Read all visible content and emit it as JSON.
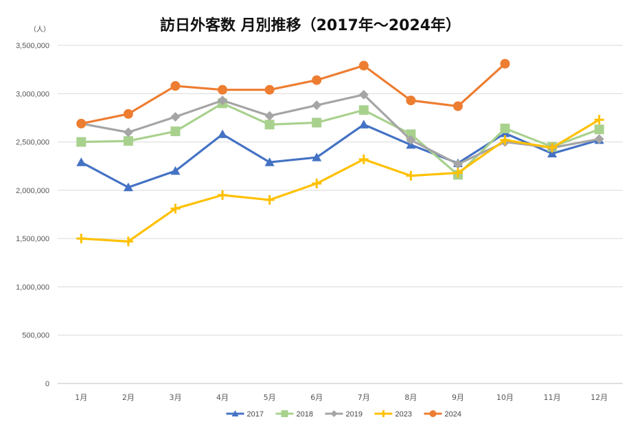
{
  "chart_data": {
    "type": "line",
    "title": "訪日外客数 月別推移（2017年～2024年）",
    "unit_label": "（人）",
    "xlabel": "",
    "ylabel": "人",
    "ylim": [
      0,
      3500000
    ],
    "yticks": [
      0,
      500000,
      1000000,
      1500000,
      2000000,
      2500000,
      3000000,
      3500000
    ],
    "ytick_labels": [
      "0",
      "500,000",
      "1,000,000",
      "1,500,000",
      "2,000,000",
      "2,500,000",
      "3,000,000",
      "3,500,000"
    ],
    "categories": [
      "1月",
      "2月",
      "3月",
      "4月",
      "5月",
      "6月",
      "7月",
      "8月",
      "9月",
      "10月",
      "11月",
      "12月"
    ],
    "grid": "horizontal",
    "legend_position": "bottom",
    "series": [
      {
        "name": "2017",
        "color": "#4472c4",
        "marker": "triangle",
        "values": [
          2290000,
          2030000,
          2200000,
          2580000,
          2290000,
          2340000,
          2680000,
          2470000,
          2280000,
          2590000,
          2380000,
          2520000
        ]
      },
      {
        "name": "2018",
        "color": "#a9d18e",
        "marker": "square",
        "values": [
          2500000,
          2510000,
          2610000,
          2900000,
          2680000,
          2700000,
          2830000,
          2580000,
          2160000,
          2640000,
          2450000,
          2630000
        ]
      },
      {
        "name": "2019",
        "color": "#a5a5a5",
        "marker": "diamond",
        "values": [
          2690000,
          2600000,
          2760000,
          2930000,
          2770000,
          2880000,
          2990000,
          2520000,
          2270000,
          2500000,
          2440000,
          2530000
        ]
      },
      {
        "name": "2023",
        "color": "#ffc000",
        "marker": "plus",
        "values": [
          1500000,
          1470000,
          1810000,
          1950000,
          1900000,
          2070000,
          2320000,
          2150000,
          2180000,
          2520000,
          2440000,
          2730000
        ]
      },
      {
        "name": "2024",
        "color": "#ed7d31",
        "marker": "circle",
        "values": [
          2690000,
          2790000,
          3080000,
          3040000,
          3040000,
          3140000,
          3290000,
          2930000,
          2870000,
          3310000,
          null,
          null
        ]
      }
    ]
  }
}
